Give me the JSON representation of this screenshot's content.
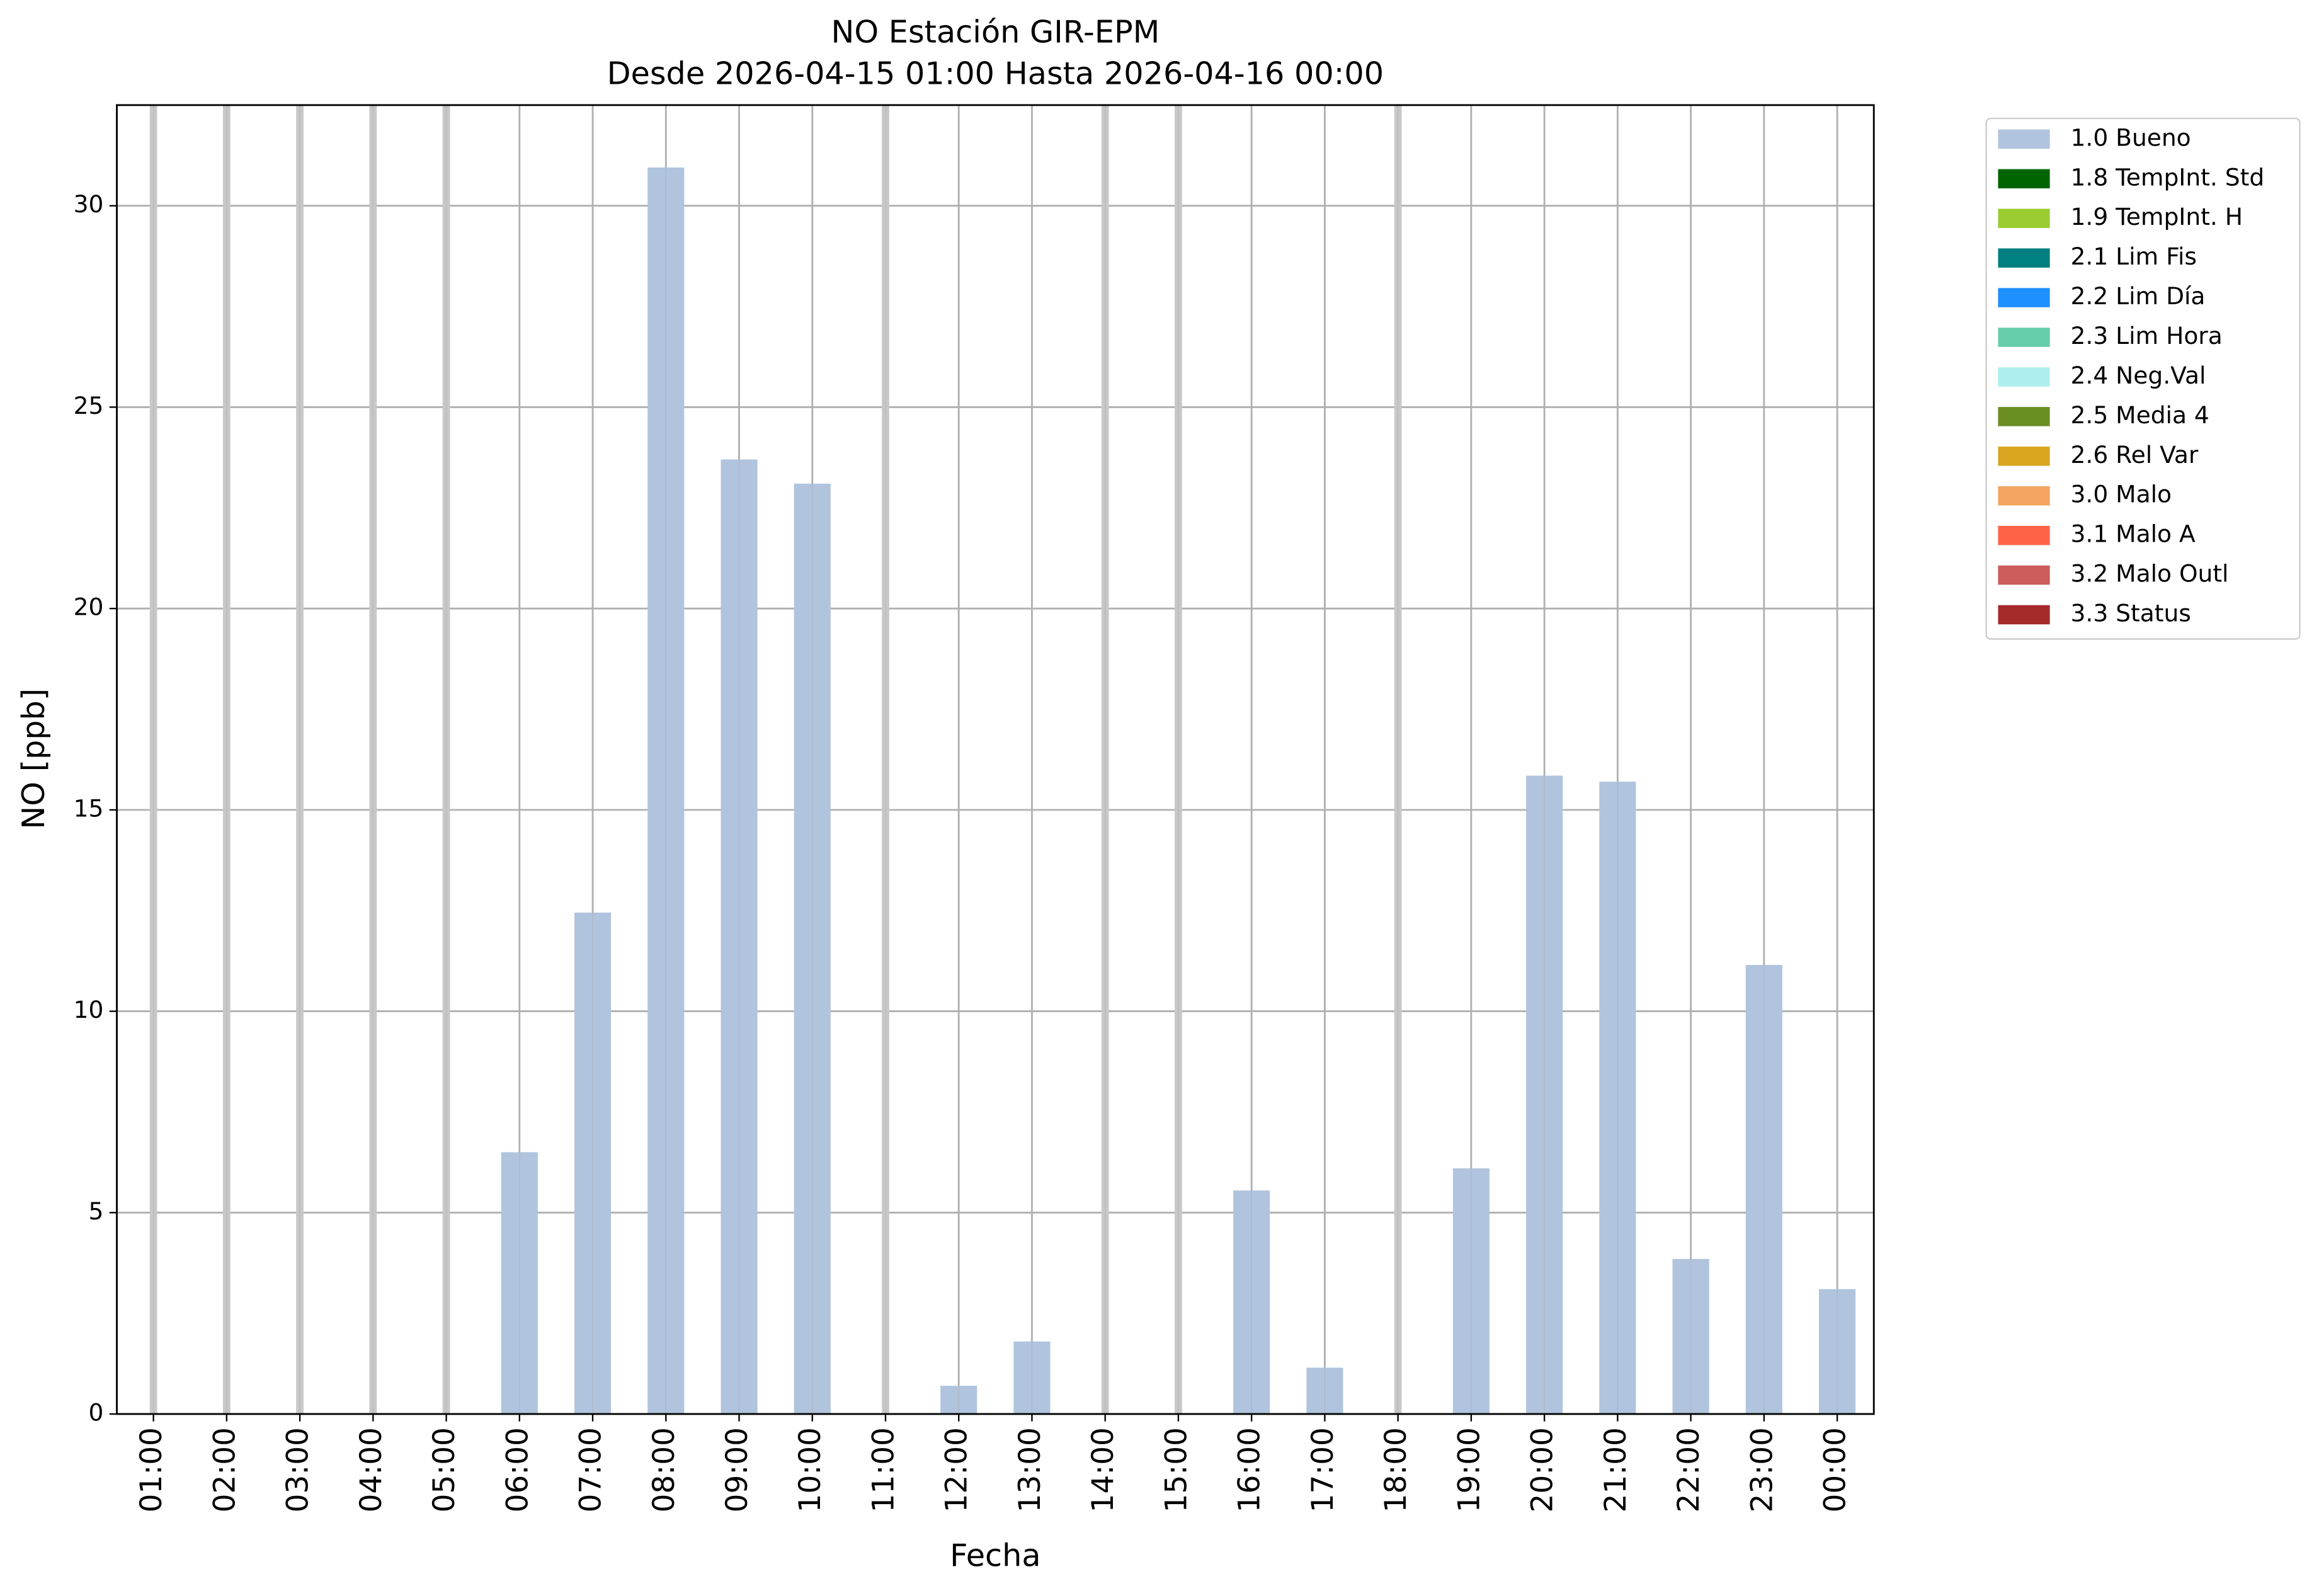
{
  "chart_data": {
    "type": "bar",
    "title": "NO Estación GIR-EPM",
    "subtitle": "Desde 2026-04-15 01:00 Hasta 2026-04-16 00:00",
    "x_label": "Fecha",
    "y_label": "NO [ppb]",
    "categories": [
      "01:00",
      "02:00",
      "03:00",
      "04:00",
      "05:00",
      "06:00",
      "07:00",
      "08:00",
      "09:00",
      "10:00",
      "11:00",
      "12:00",
      "13:00",
      "14:00",
      "15:00",
      "16:00",
      "17:00",
      "18:00",
      "19:00",
      "20:00",
      "21:00",
      "22:00",
      "23:00",
      "00:00"
    ],
    "series": [
      {
        "name": "1.0 Bueno",
        "color": "#b0c4de",
        "values": [
          null,
          null,
          null,
          null,
          null,
          6.5,
          12.45,
          30.95,
          23.7,
          23.1,
          null,
          0.7,
          1.8,
          null,
          null,
          5.55,
          1.15,
          null,
          6.1,
          15.85,
          15.7,
          3.85,
          11.15,
          3.1
        ]
      },
      {
        "name": "1.8 TempInt. Std",
        "color": "#006400"
      },
      {
        "name": "1.9 TempInt. H",
        "color": "#9acd32"
      },
      {
        "name": "2.1 Lim Fis",
        "color": "#008080"
      },
      {
        "name": "2.2 Lim Día",
        "color": "#1e90ff"
      },
      {
        "name": "2.3 Lim Hora",
        "color": "#66cdaa"
      },
      {
        "name": "2.4 Neg.Val",
        "color": "#afeeee"
      },
      {
        "name": "2.5 Media 4",
        "color": "#6b8e23"
      },
      {
        "name": "2.6 Rel Var",
        "color": "#daa520"
      },
      {
        "name": "3.0 Malo",
        "color": "#f4a460"
      },
      {
        "name": "3.1 Malo A",
        "color": "#ff6347"
      },
      {
        "name": "3.2 Malo Outl",
        "color": "#cd5c5c"
      },
      {
        "name": "3.3 Status",
        "color": "#a52a2a"
      }
    ],
    "ylim": [
      0,
      32.5
    ],
    "yticks": [
      0,
      5,
      10,
      15,
      20,
      25,
      30
    ],
    "grid": true,
    "legend": "outside-upper-right"
  }
}
